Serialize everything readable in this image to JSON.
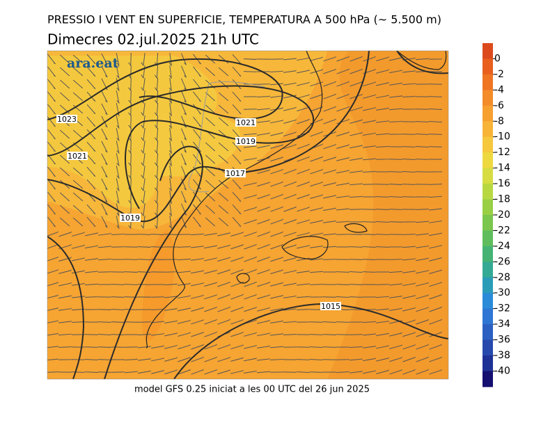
{
  "header": {
    "title": "PRESSIO I VENT EN SUPERFICIE, TEMPERATURA A 500 hPa (~ 5.500 m)",
    "subtitle": "Dimecres   02.jul.2025 21h UTC"
  },
  "map": {
    "logo": "ara.eat",
    "isobar_labels": [
      "1023",
      "1021",
      "1021",
      "1019",
      "1017",
      "1019",
      "1015"
    ]
  },
  "colorbar": {
    "ticks": [
      0,
      -2,
      -4,
      -6,
      -8,
      -10,
      -12,
      -14,
      -16,
      -18,
      -20,
      -22,
      -24,
      -26,
      -28,
      -30,
      -32,
      -34,
      -36,
      -38,
      -40
    ],
    "colors": [
      "#dc4a1c",
      "#e85f1e",
      "#ef7523",
      "#f38c29",
      "#f6a030",
      "#f7b437",
      "#f5c83d",
      "#eed83f",
      "#d6dc41",
      "#b8d842",
      "#98cf45",
      "#7bc64d",
      "#5fbd5d",
      "#46b374",
      "#34a994",
      "#2b9cb8",
      "#2c8bd9",
      "#2e75d4",
      "#2b5fc2",
      "#2749ad",
      "#1e3196",
      "#150f70"
    ]
  },
  "footer": "model GFS 0.25 iniciat a les 00 UTC del 26 jun 2025"
}
